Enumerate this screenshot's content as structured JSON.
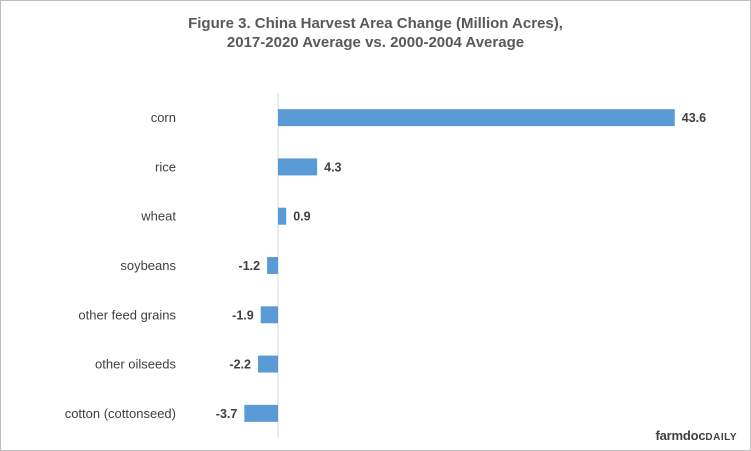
{
  "chart_data": {
    "type": "bar",
    "orientation": "horizontal",
    "title": "Figure 3.  China Harvest Area Change (Million Acres),",
    "subtitle": "2017-2020 Average vs. 2000-2004 Average",
    "categories": [
      "corn",
      "rice",
      "wheat",
      "soybeans",
      "other feed grains",
      "other oilseeds",
      "cotton (cottonseed)"
    ],
    "values": [
      43.6,
      4.3,
      0.9,
      -1.2,
      -1.9,
      -2.2,
      -3.7
    ],
    "value_labels": [
      "43.6",
      "4.3",
      "0.9",
      "-1.2",
      "-1.9",
      "-2.2",
      "-3.7"
    ],
    "xlim": [
      -5,
      45
    ],
    "bar_color": "#5b9bd5",
    "grid": false,
    "legend": "none"
  },
  "branding": {
    "logo_main": "farmdoc",
    "logo_accent": "DAILY"
  }
}
